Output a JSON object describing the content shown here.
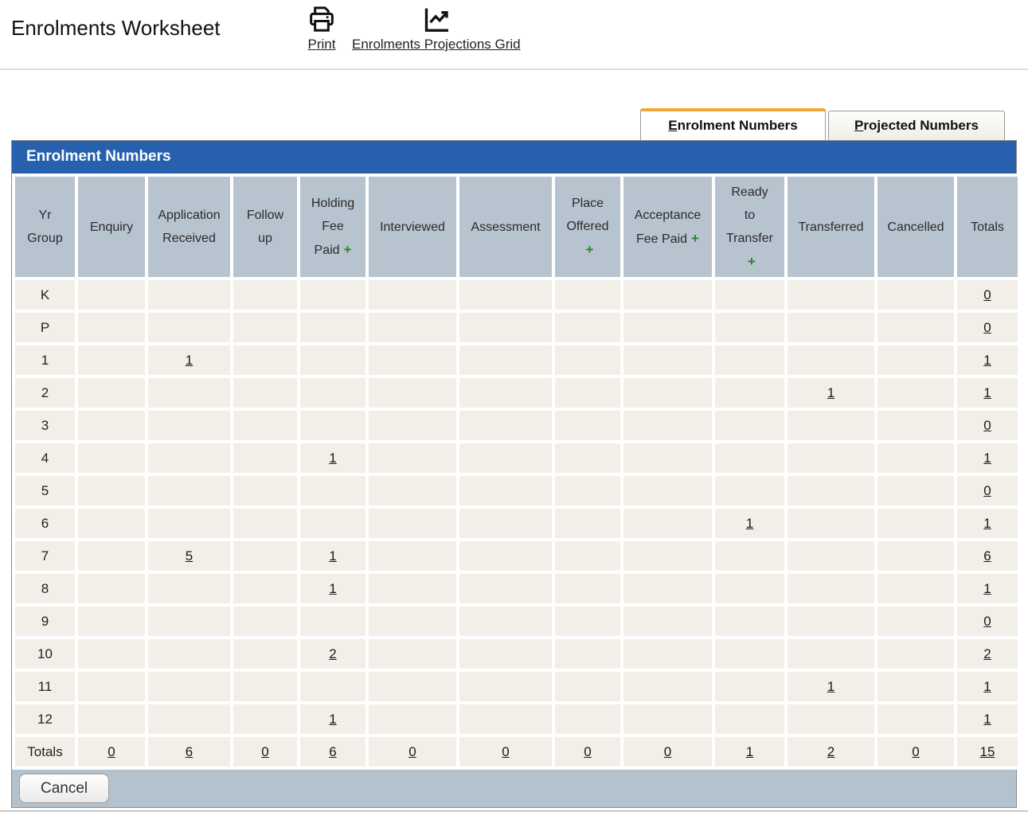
{
  "page": {
    "title": "Enrolments Worksheet"
  },
  "toolbar": {
    "print": {
      "label": "Print",
      "icon": "printer-icon"
    },
    "projections": {
      "label": "Enrolments Projections Grid",
      "icon": "line-chart-icon"
    }
  },
  "tabs": {
    "enrolment": {
      "label": "Enrolment Numbers",
      "active": true
    },
    "projected": {
      "label": "Projected Numbers",
      "active": false
    }
  },
  "panel": {
    "title": "Enrolment Numbers"
  },
  "table": {
    "columns": [
      {
        "label": "Yr Group",
        "lines": [
          "Yr",
          "Group"
        ],
        "plus": null
      },
      {
        "label": "Enquiry",
        "lines": [
          "Enquiry"
        ],
        "plus": null
      },
      {
        "label": "Application Received",
        "lines": [
          "Application",
          "Received"
        ],
        "plus": null
      },
      {
        "label": "Follow up",
        "lines": [
          "Follow",
          "up"
        ],
        "plus": null
      },
      {
        "label": "Holding Fee Paid",
        "lines": [
          "Holding",
          "Fee",
          "Paid"
        ],
        "plus": "inline"
      },
      {
        "label": "Interviewed",
        "lines": [
          "Interviewed"
        ],
        "plus": null
      },
      {
        "label": "Assessment",
        "lines": [
          "Assessment"
        ],
        "plus": null
      },
      {
        "label": "Place Offered",
        "lines": [
          "Place",
          "Offered"
        ],
        "plus": "own-line"
      },
      {
        "label": "Acceptance Fee Paid",
        "lines": [
          "Acceptance",
          "Fee Paid"
        ],
        "plus": "inline"
      },
      {
        "label": "Ready to Transfer",
        "lines": [
          "Ready",
          "to",
          "Transfer"
        ],
        "plus": "own-line"
      },
      {
        "label": "Transferred",
        "lines": [
          "Transferred"
        ],
        "plus": null
      },
      {
        "label": "Cancelled",
        "lines": [
          "Cancelled"
        ],
        "plus": null
      },
      {
        "label": "Totals",
        "lines": [
          "Totals"
        ],
        "plus": null
      }
    ],
    "rows": [
      {
        "yr": "K",
        "totals_row": false,
        "cells": [
          "",
          "",
          "",
          "",
          "",
          "",
          "",
          "",
          "",
          "",
          "",
          "0"
        ]
      },
      {
        "yr": "P",
        "totals_row": false,
        "cells": [
          "",
          "",
          "",
          "",
          "",
          "",
          "",
          "",
          "",
          "",
          "",
          "0"
        ]
      },
      {
        "yr": "1",
        "totals_row": false,
        "cells": [
          "",
          "1",
          "",
          "",
          "",
          "",
          "",
          "",
          "",
          "",
          "",
          "1"
        ]
      },
      {
        "yr": "2",
        "totals_row": false,
        "cells": [
          "",
          "",
          "",
          "",
          "",
          "",
          "",
          "",
          "",
          "1",
          "",
          "1"
        ]
      },
      {
        "yr": "3",
        "totals_row": false,
        "cells": [
          "",
          "",
          "",
          "",
          "",
          "",
          "",
          "",
          "",
          "",
          "",
          "0"
        ]
      },
      {
        "yr": "4",
        "totals_row": false,
        "cells": [
          "",
          "",
          "",
          "1",
          "",
          "",
          "",
          "",
          "",
          "",
          "",
          "1"
        ]
      },
      {
        "yr": "5",
        "totals_row": false,
        "cells": [
          "",
          "",
          "",
          "",
          "",
          "",
          "",
          "",
          "",
          "",
          "",
          "0"
        ]
      },
      {
        "yr": "6",
        "totals_row": false,
        "cells": [
          "",
          "",
          "",
          "",
          "",
          "",
          "",
          "",
          "1",
          "",
          "",
          "1"
        ]
      },
      {
        "yr": "7",
        "totals_row": false,
        "cells": [
          "",
          "5",
          "",
          "1",
          "",
          "",
          "",
          "",
          "",
          "",
          "",
          "6"
        ]
      },
      {
        "yr": "8",
        "totals_row": false,
        "cells": [
          "",
          "",
          "",
          "1",
          "",
          "",
          "",
          "",
          "",
          "",
          "",
          "1"
        ]
      },
      {
        "yr": "9",
        "totals_row": false,
        "cells": [
          "",
          "",
          "",
          "",
          "",
          "",
          "",
          "",
          "",
          "",
          "",
          "0"
        ]
      },
      {
        "yr": "10",
        "totals_row": false,
        "cells": [
          "",
          "",
          "",
          "2",
          "",
          "",
          "",
          "",
          "",
          "",
          "",
          "2"
        ]
      },
      {
        "yr": "11",
        "totals_row": false,
        "cells": [
          "",
          "",
          "",
          "",
          "",
          "",
          "",
          "",
          "",
          "1",
          "",
          "1"
        ]
      },
      {
        "yr": "12",
        "totals_row": false,
        "cells": [
          "",
          "",
          "",
          "1",
          "",
          "",
          "",
          "",
          "",
          "",
          "",
          "1"
        ]
      },
      {
        "yr": "Totals",
        "totals_row": true,
        "cells": [
          "0",
          "6",
          "0",
          "6",
          "0",
          "0",
          "0",
          "0",
          "1",
          "2",
          "0",
          "15"
        ]
      }
    ]
  },
  "footer": {
    "cancel_label": "Cancel"
  },
  "colors": {
    "accent_blue": "#2761ae",
    "header_cell_bg": "#b8c3d0",
    "data_cell_bg": "#f1efe8",
    "tab_accent_orange": "#efa733",
    "plus_green": "#1f8a1f",
    "footer_bar_bg": "#b4c2ce",
    "link_text": "#191919"
  }
}
